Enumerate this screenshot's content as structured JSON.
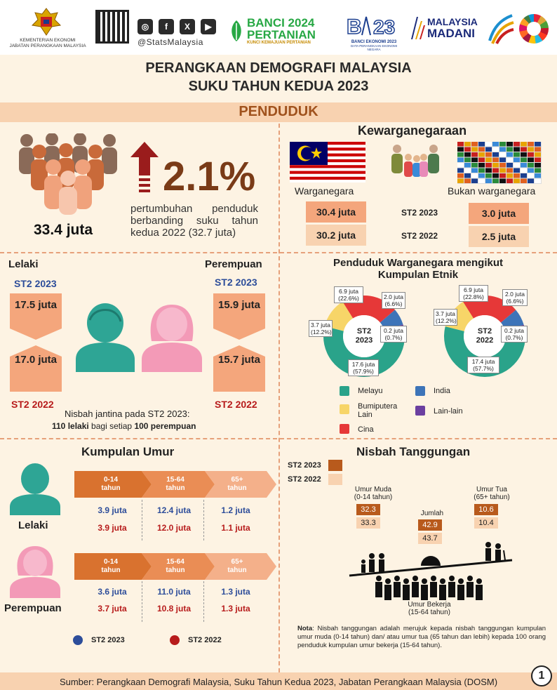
{
  "header": {
    "ministry": "KEMENTERIAN EKONOMI",
    "department": "JABATAN PERANGKAAN MALAYSIA",
    "social_handle": "@StatsMalaysia",
    "banci_line1": "BANCI 2024",
    "banci_line2": "PERTANIAN",
    "banci_tagline": "KUNCI KEMAJUAN PERTANIAN",
    "be_label": "BANCI EKONOMI 2023",
    "be_sub": "DATA PERANGKAAN EKONOMI NEGARA",
    "madani_line1": "MALAYSIA",
    "madani_line2": "MADANI"
  },
  "title_line1": "PERANGKAAN DEMOGRAFI MALAYSIA",
  "title_line2": "SUKU TAHUN KEDUA 2023",
  "section_title": "PENDUDUK",
  "population": {
    "total": "33.4 juta",
    "growth_pct": "2.1%",
    "growth_text": "pertumbuhan penduduk berbanding suku tahun kedua 2022 (32.7 juta)"
  },
  "citizenship": {
    "heading": "Kewarganegaraan",
    "citizen_label": "Warganegara",
    "noncitizen_label": "Bukan warganegara",
    "rows": [
      {
        "period": "ST2 2023",
        "citizen": "30.4 juta",
        "noncitizen": "3.0 juta"
      },
      {
        "period": "ST2 2022",
        "citizen": "30.2 juta",
        "noncitizen": "2.5 juta"
      }
    ]
  },
  "gender": {
    "male_label": "Lelaki",
    "female_label": "Perempuan",
    "period_2023": "ST2 2023",
    "period_2022": "ST2 2022",
    "male_2023": "17.5 juta",
    "male_2022": "17.0 juta",
    "female_2023": "15.9 juta",
    "female_2022": "15.7 juta",
    "ratio_text": "Nisbah jantina pada ST2 2023:",
    "ratio_bold1": "110 lelaki",
    "ratio_mid": " bagi setiap ",
    "ratio_bold2": "100 perempuan"
  },
  "ethnic": {
    "heading_line1": "Penduduk Warganegara mengikut",
    "heading_line2": "Kumpulan Etnik",
    "donut_2023_label": "ST2 2023",
    "donut_2022_label": "ST2 2022",
    "callouts_2023": {
      "malay": "17.6 juta (57.9%)",
      "bumi": "3.7 juta (12.2%)",
      "chinese": "6.9 juta (22.6%)",
      "indian": "2.0 juta (6.6%)",
      "others": "0.2 juta (0.7%)"
    },
    "callouts_2022": {
      "malay": "17.4 juta (57.7%)",
      "bumi": "3.7 juta (12.2%)",
      "chinese": "6.9 juta (22.8%)",
      "indian": "2.0 juta (6.6%)",
      "others": "0.2 juta (0.7%)"
    },
    "legend": {
      "malay": "Melayu",
      "bumi": "Bumiputera Lain",
      "chinese": "Cina",
      "indian": "India",
      "others": "Lain-lain"
    },
    "colors": {
      "malay": "#2aa38a",
      "bumi": "#f7d568",
      "chinese": "#e63838",
      "indian": "#3d74b8",
      "others": "#6b3fa0"
    }
  },
  "chart_data": [
    {
      "type": "pie",
      "title": "ST2 2023",
      "categories": [
        "Melayu",
        "Bumiputera Lain",
        "Cina",
        "India",
        "Lain-lain"
      ],
      "values": [
        57.9,
        12.2,
        22.6,
        6.6,
        0.7
      ]
    },
    {
      "type": "pie",
      "title": "ST2 2022",
      "categories": [
        "Melayu",
        "Bumiputera Lain",
        "Cina",
        "India",
        "Lain-lain"
      ],
      "values": [
        57.7,
        12.2,
        22.8,
        6.6,
        0.7
      ]
    }
  ],
  "age": {
    "heading": "Kumpulan Umur",
    "groups": [
      {
        "line1": "0-14",
        "line2": "tahun"
      },
      {
        "line1": "15-64",
        "line2": "tahun"
      },
      {
        "line1": "65+",
        "line2": "tahun"
      }
    ],
    "male_label": "Lelaki",
    "female_label": "Perempuan",
    "male_2023": [
      "3.9 juta",
      "12.4 juta",
      "1.2 juta"
    ],
    "male_2022": [
      "3.9 juta",
      "12.0 juta",
      "1.1 juta"
    ],
    "female_2023": [
      "3.6 juta",
      "11.0 juta",
      "1.3 juta"
    ],
    "female_2022": [
      "3.7 juta",
      "10.8 juta",
      "1.3 juta"
    ],
    "legend_2023": "ST2 2023",
    "legend_2022": "ST2 2022"
  },
  "dependency": {
    "heading": "Nisbah Tanggungan",
    "legend_2023": "ST2 2023",
    "legend_2022": "ST2 2022",
    "young_label_line1": "Umur Muda",
    "young_label_line2": "(0-14 tahun)",
    "young_2023": "32.3",
    "young_2022": "33.3",
    "total_label": "Jumlah",
    "total_2023": "42.9",
    "total_2022": "43.7",
    "old_label_line1": "Umur Tua",
    "old_label_line2": "(65+ tahun)",
    "old_2023": "10.6",
    "old_2022": "10.4",
    "working_label_line1": "Umur Bekerja",
    "working_label_line2": "(15-64 tahun)",
    "note_bold": "Nota",
    "note_text": ": Nisbah tanggungan adalah merujuk kepada nisbah tanggungan kumpulan umur muda (0-14 tahun) dan/ atau umur tua (65 tahun dan lebih) kepada 100 orang penduduk kumpulan umur bekerja (15-64 tahun)."
  },
  "footer": {
    "source": "Sumber: Perangkaan Demografi Malaysia, Suku Tahun Kedua 2023, Jabatan Perangkaan Malaysia (DOSM)",
    "page": "1"
  },
  "colors": {
    "brown": "#7a3b17",
    "orange": "#d9722f",
    "peach": "#f8d2b0",
    "salmon": "#f4a67c"
  }
}
